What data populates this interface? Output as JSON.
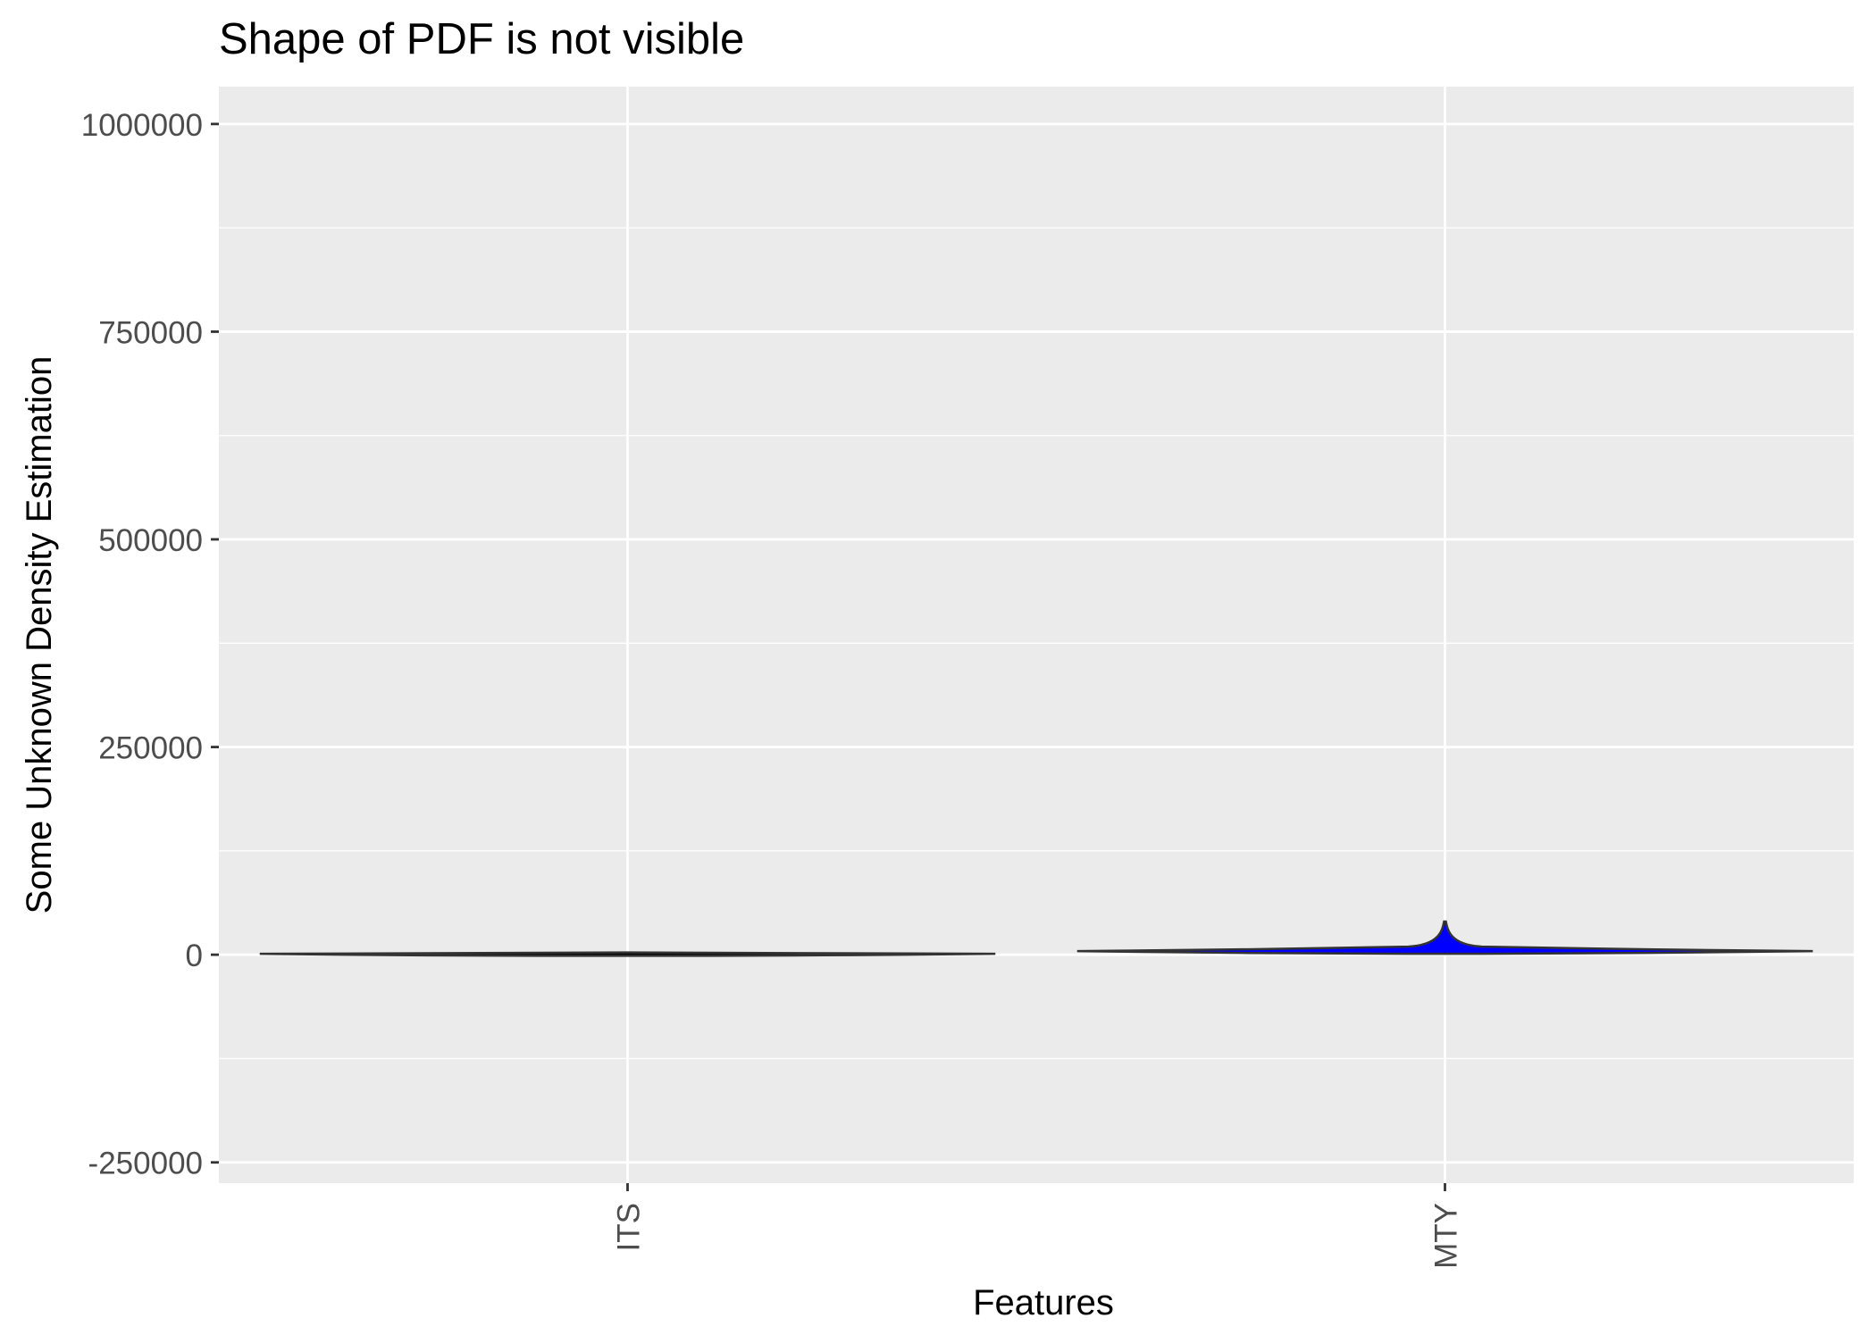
{
  "chart_data": {
    "type": "violin",
    "title": "Shape of PDF is not visible",
    "xlabel": "Features",
    "ylabel": "Some Unknown Density Estimation",
    "categories": [
      "ITS",
      "MTY"
    ],
    "ylim": [
      -275000,
      1045000
    ],
    "yticks": [
      -250000,
      0,
      250000,
      500000,
      750000,
      1000000
    ],
    "ytick_labels": [
      "-250000",
      "0",
      "250000",
      "500000",
      "750000",
      "1000000"
    ],
    "grid": true,
    "legend": "none",
    "series": [
      {
        "category": "ITS",
        "min": 0,
        "max": 1500,
        "max_density_width": 0.9,
        "fill": "#000000"
      },
      {
        "category": "MTY",
        "min": 0,
        "max": 40000,
        "max_density_width": 0.9,
        "fill": "#0000ff"
      }
    ],
    "colors": {
      "panel_background": "#ebebeb",
      "grid": "#ffffff",
      "outline": "#333333",
      "text": "#4d4d4d",
      "title": "#000000"
    }
  }
}
